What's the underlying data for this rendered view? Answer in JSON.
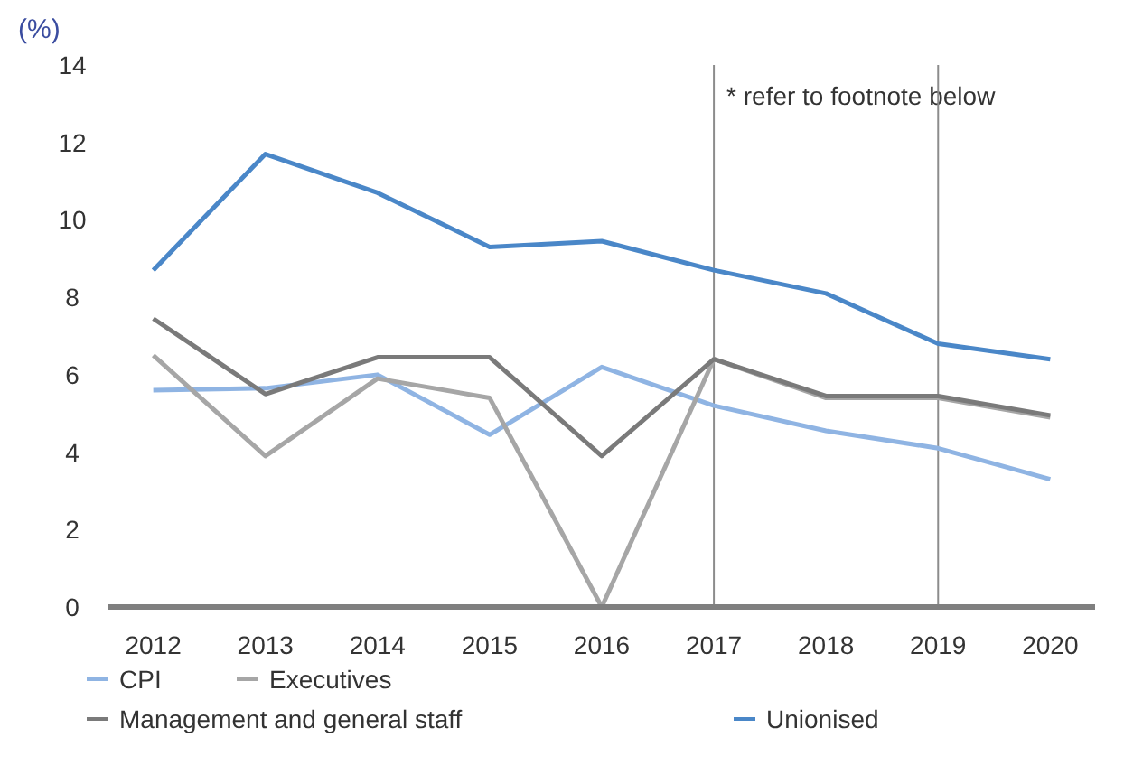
{
  "chart_data": {
    "type": "line",
    "ylabel": "(%)",
    "x": [
      2012,
      2013,
      2014,
      2015,
      2016,
      2017,
      2018,
      2019,
      2020
    ],
    "xlim": [
      2011.6,
      2020.4
    ],
    "xticks": [
      2012,
      2013,
      2014,
      2015,
      2016,
      2017,
      2018,
      2019,
      2020
    ],
    "ylim": [
      0,
      14
    ],
    "yticks": [
      0,
      2,
      4,
      6,
      8,
      10,
      12,
      14
    ],
    "series": [
      {
        "name": "CPI",
        "color": "#8fb4e3",
        "values": [
          5.6,
          5.65,
          6.0,
          4.45,
          6.2,
          5.2,
          4.55,
          4.1,
          3.3
        ]
      },
      {
        "name": "Executives",
        "color": "#a6a6a6",
        "values": [
          6.5,
          3.9,
          5.9,
          5.4,
          0,
          6.4,
          5.4,
          5.4,
          4.9
        ]
      },
      {
        "name": "Management and general staff",
        "color": "#7a7a7a",
        "values": [
          7.45,
          5.5,
          6.45,
          6.45,
          3.9,
          6.4,
          5.45,
          5.45,
          4.95
        ]
      },
      {
        "name": "Unionised",
        "color": "#4a87c8",
        "values": [
          8.7,
          11.7,
          10.7,
          9.3,
          9.45,
          8.7,
          8.1,
          6.8,
          6.4
        ]
      }
    ],
    "ref_lines": [
      {
        "axis": "x",
        "value": 2017,
        "label": "* refer to footnote below",
        "color": "#8c8c8c"
      },
      {
        "axis": "x",
        "value": 2019,
        "label": null,
        "color": "#8c8c8c"
      }
    ],
    "grid": false,
    "legend": "bottom",
    "marker": "none",
    "line_style": "solid"
  }
}
